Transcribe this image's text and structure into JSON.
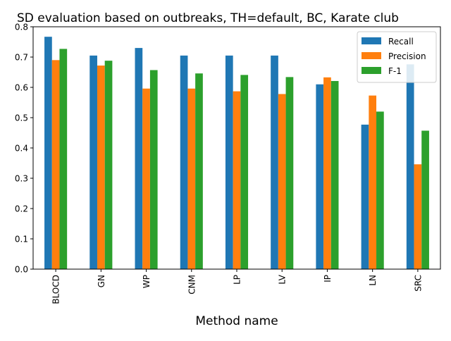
{
  "chart_data": {
    "type": "bar",
    "title": "SD evaluation based on outbreaks, TH=default, BC, Karate club",
    "xlabel": "Method name",
    "ylabel": "",
    "categories": [
      "BLOCD",
      "GN",
      "WP",
      "CNM",
      "LP",
      "LV",
      "IP",
      "LN",
      "SRC"
    ],
    "series": [
      {
        "name": "Recall",
        "color": "#1f77b4",
        "values": [
          0.767,
          0.705,
          0.73,
          0.705,
          0.705,
          0.705,
          0.61,
          0.477,
          0.676
        ]
      },
      {
        "name": "Precision",
        "color": "#ff7f0e",
        "values": [
          0.69,
          0.672,
          0.596,
          0.596,
          0.587,
          0.578,
          0.633,
          0.573,
          0.346
        ]
      },
      {
        "name": "F-1",
        "color": "#2ca02c",
        "values": [
          0.727,
          0.688,
          0.657,
          0.646,
          0.641,
          0.634,
          0.621,
          0.52,
          0.457
        ]
      }
    ],
    "ylim": [
      0,
      0.8
    ],
    "yticks": [
      "0.0",
      "0.1",
      "0.2",
      "0.3",
      "0.4",
      "0.5",
      "0.6",
      "0.7",
      "0.8"
    ],
    "grid": false,
    "legend_position": "top-right"
  }
}
